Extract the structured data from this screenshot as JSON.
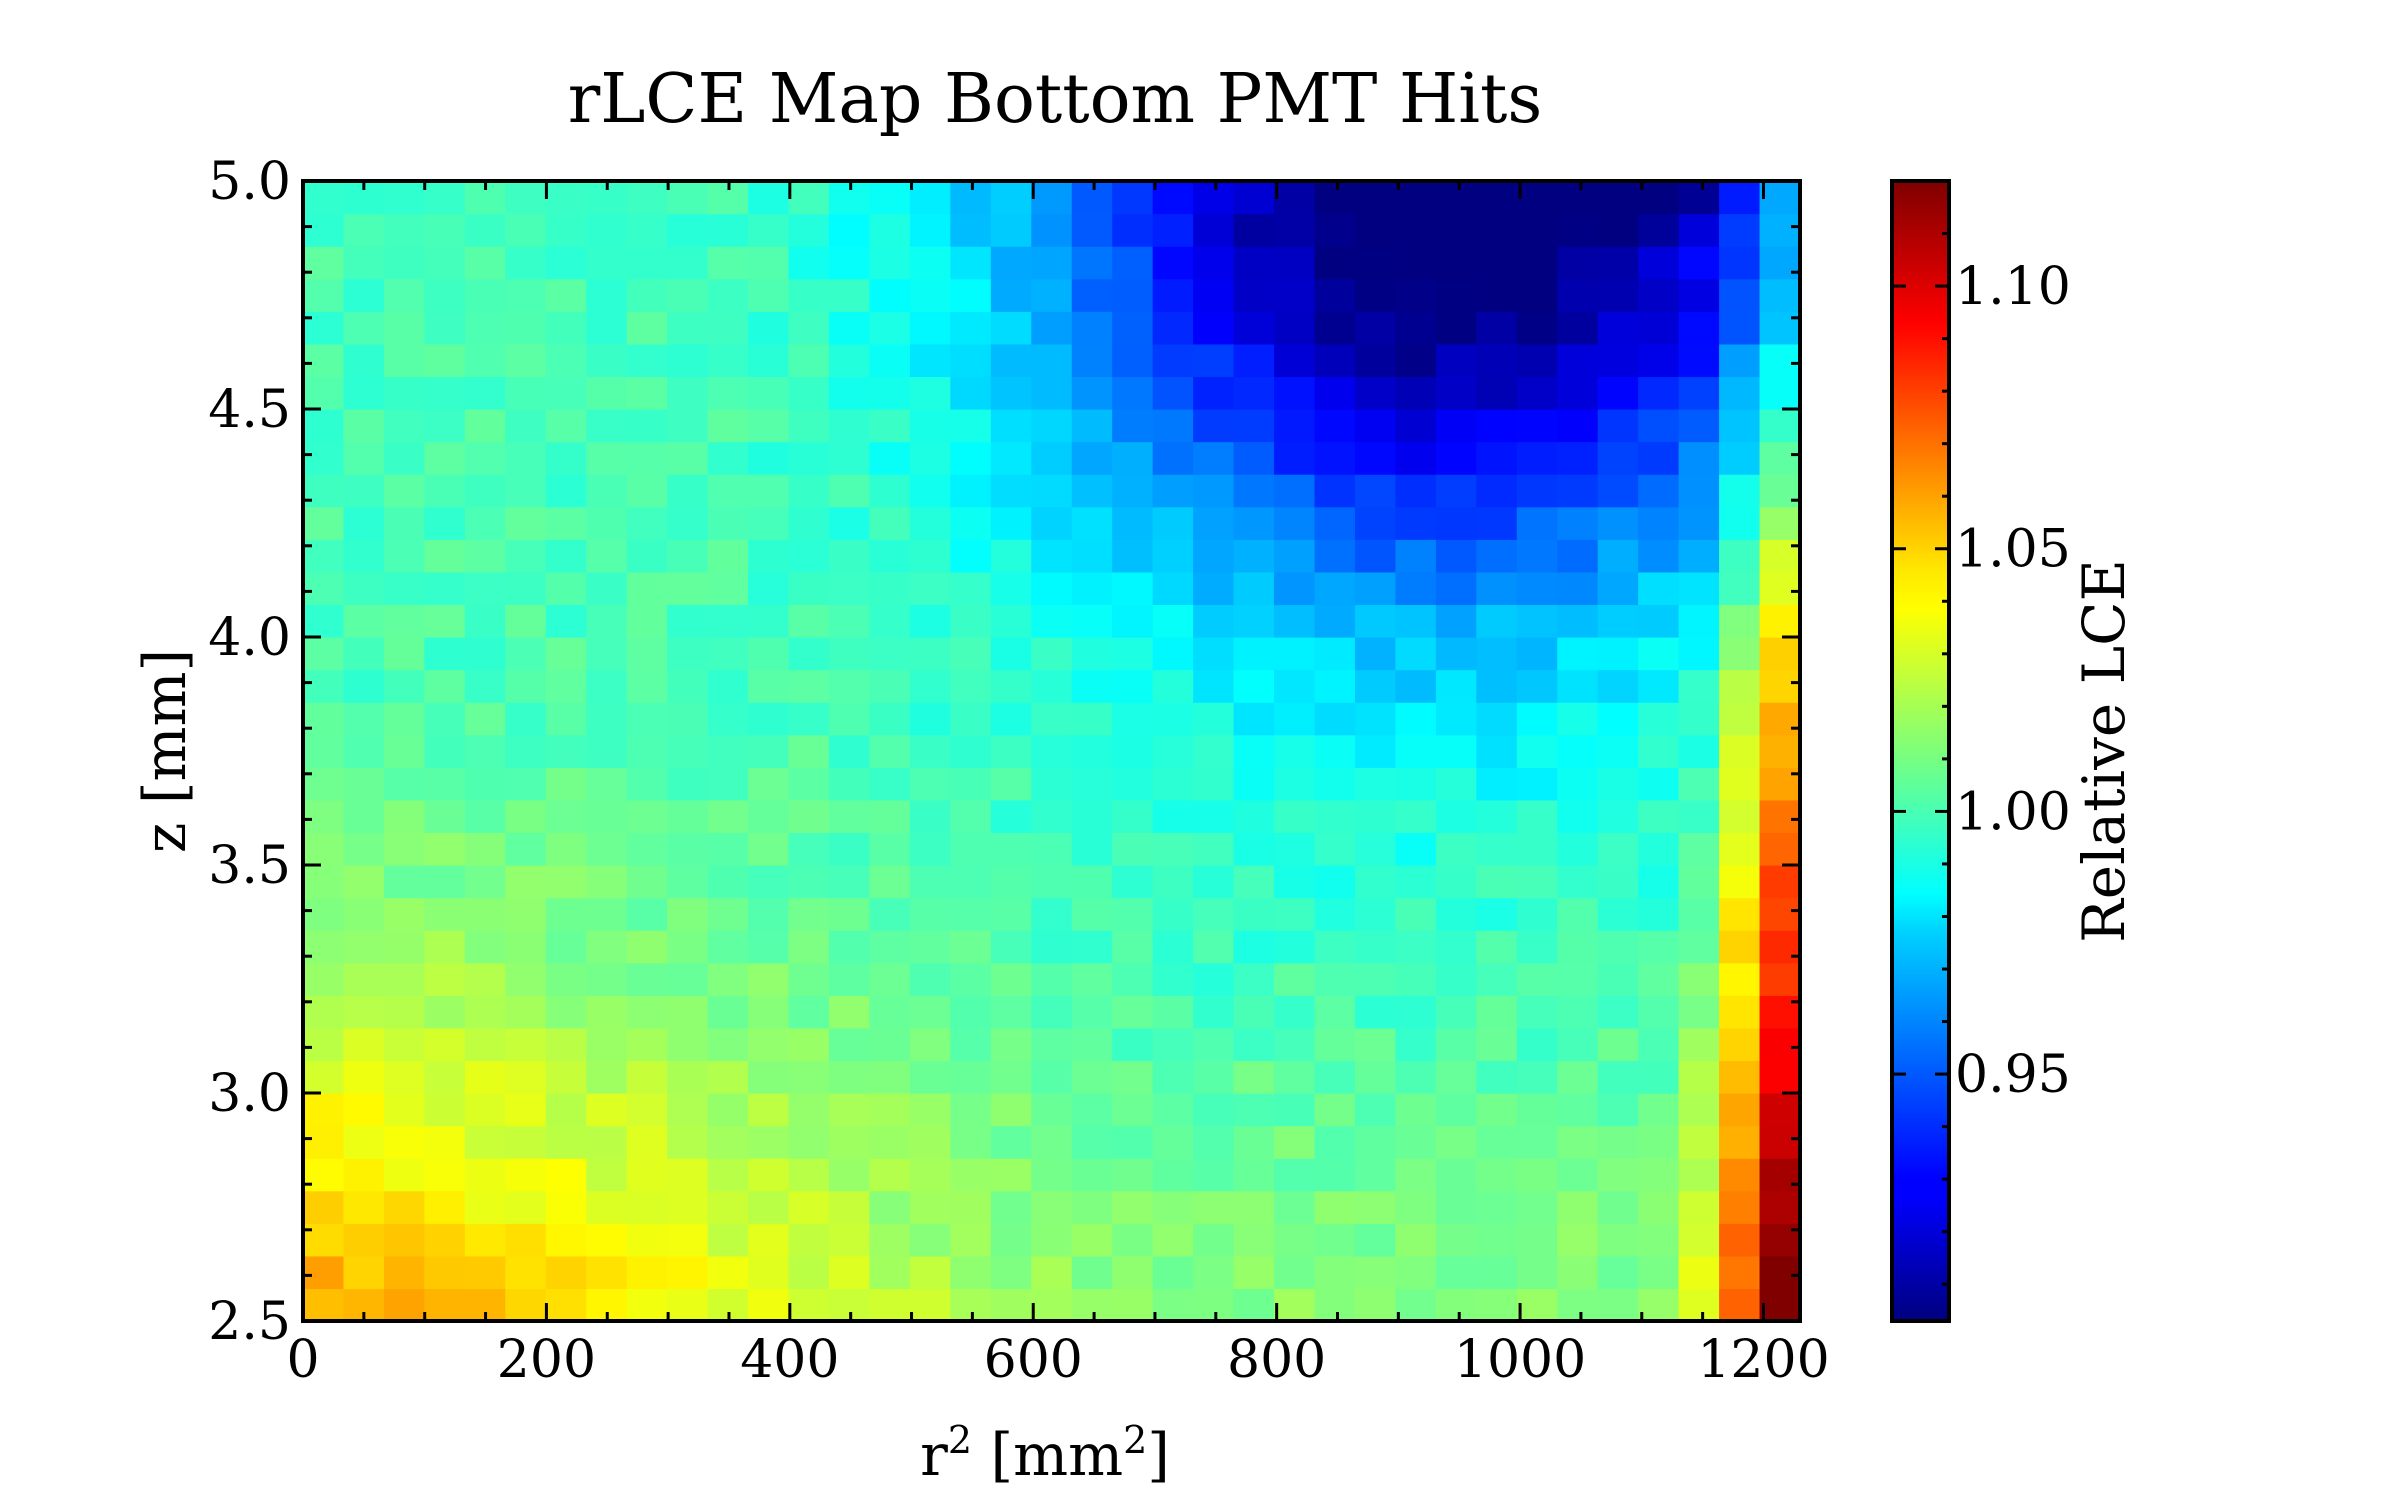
{
  "chart_data": {
    "type": "heatmap",
    "title": "rLCE Map Bottom PMT Hits",
    "xlabel_base": "r",
    "xlabel_sup": "2",
    "xlabel_unit_open": " [mm",
    "xlabel_unit_sup": "2",
    "xlabel_unit_close": "]",
    "ylabel": "z [mm]",
    "colorbar_label": "Relative LCE",
    "xlim": [
      0,
      1230
    ],
    "ylim": [
      2.5,
      5.0
    ],
    "x_ticks": [
      "0",
      "200",
      "400",
      "600",
      "800",
      "1000",
      "1200"
    ],
    "y_ticks": [
      "2.5",
      "3.0",
      "3.5",
      "4.0",
      "4.5",
      "5.0"
    ],
    "colorbar_range": [
      0.903,
      1.12
    ],
    "colorbar_ticks": [
      "0.95",
      "1.00",
      "1.05",
      "1.10"
    ],
    "colormap": "jet",
    "x_bins": 37,
    "y_bins": 35,
    "pattern": "LCE about 1.00 in the centre, rising to about 1.05 toward the bottom-left corner, dropping to about 0.91 in the top-right region (r² 750–1150, z 4.2–5.0), and strongly elevated up to about 1.12 in the outermost r² column near the bottom."
  }
}
